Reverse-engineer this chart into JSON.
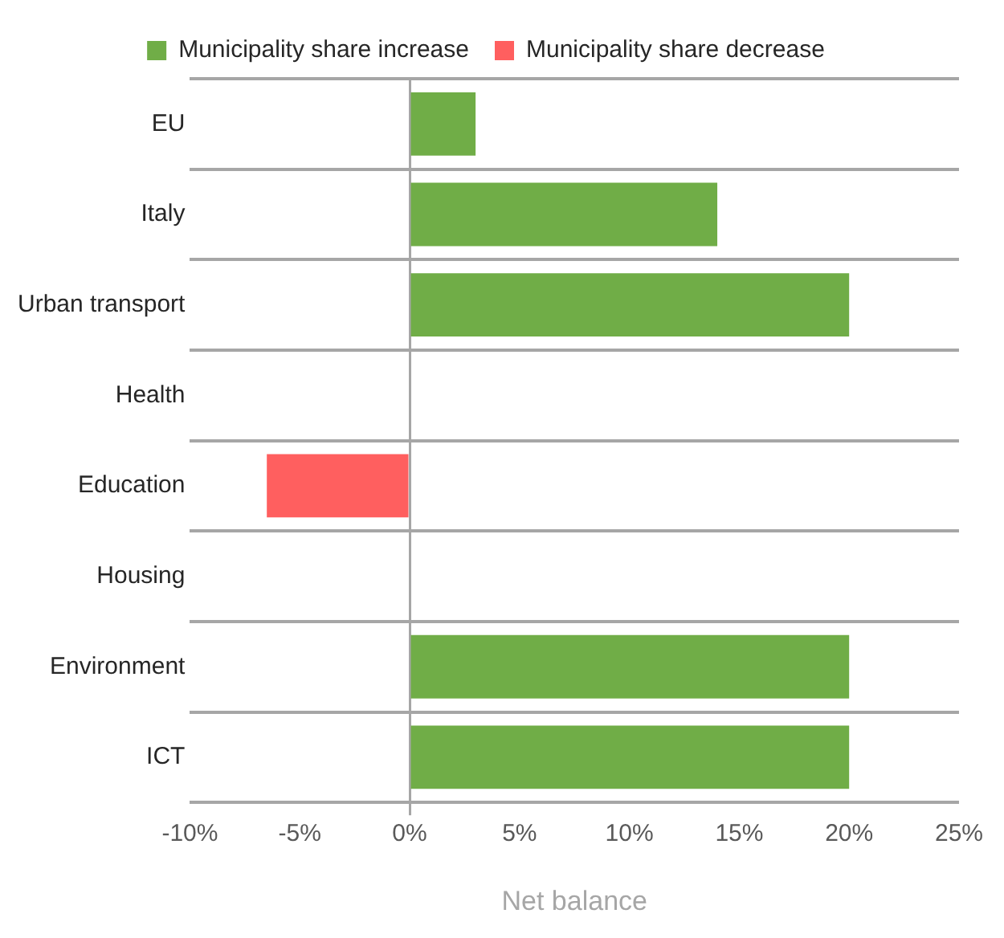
{
  "chart_data": {
    "type": "bar",
    "orientation": "horizontal",
    "stacked": true,
    "xlabel": "Net balance",
    "categories": [
      "EU",
      "Italy",
      "Urban transport",
      "Health",
      "Education",
      "Housing",
      "Environment",
      "ICT"
    ],
    "series": [
      {
        "name": "Municipality share increase",
        "color": "#70ad47",
        "values": [
          3,
          14,
          20,
          0,
          null,
          0,
          20,
          20
        ]
      },
      {
        "name": "Municipality share decrease",
        "color": "#ff5f5f",
        "values": [
          null,
          null,
          null,
          null,
          -6.5,
          null,
          null,
          null
        ]
      }
    ],
    "xlim": [
      -10,
      25
    ],
    "xticks": [
      {
        "value": -10,
        "label": "-10%"
      },
      {
        "value": -5,
        "label": "-5%"
      },
      {
        "value": 0,
        "label": "0%"
      },
      {
        "value": 5,
        "label": "5%"
      },
      {
        "value": 10,
        "label": "10%"
      },
      {
        "value": 15,
        "label": "15%"
      },
      {
        "value": 20,
        "label": "20%"
      },
      {
        "value": 25,
        "label": "25%"
      }
    ],
    "grid": "y",
    "legend": "top"
  }
}
